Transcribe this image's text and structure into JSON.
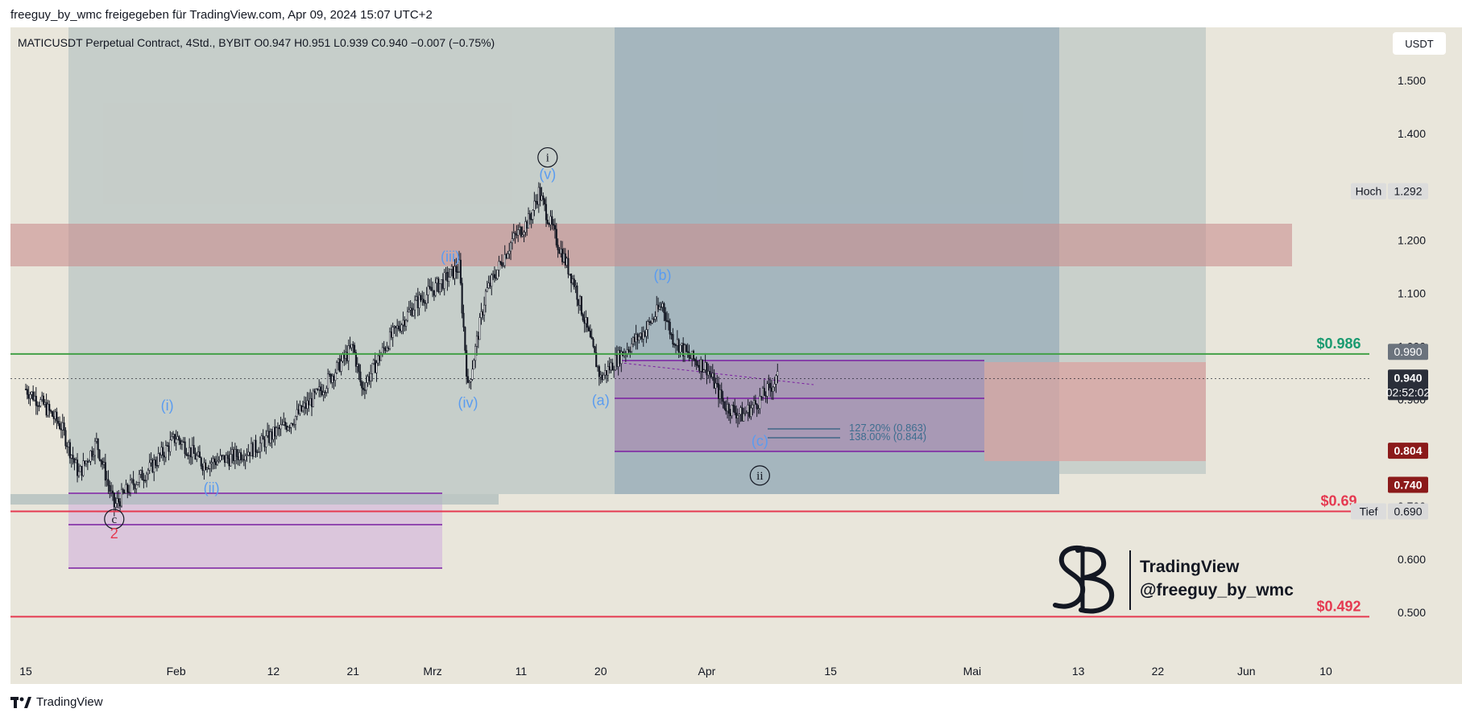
{
  "header": {
    "attribution": "freeguy_by_wmc freigegeben für TradingView.com, Apr 09, 2024 15:07 UTC+2",
    "symbol_line": "MATICUSDT Perpetual Contract, 4Std., BYBIT  O0.947  H0.951  L0.939  C0.940  −0.007 (−0.75%)"
  },
  "currency": "USDT",
  "footer": {
    "brand": "TradingView"
  },
  "watermark": {
    "line1": "TradingView",
    "line2": "@freeguy_by_wmc"
  },
  "colors": {
    "background": "#e9e6db",
    "candle": "#131722",
    "green_line": "#43a047",
    "red_line": "#e53950",
    "purple": "#7b1fa2",
    "wave_blue": "#5a9cf0",
    "zone_red": "#c98d8d",
    "zone_teal": "#8fa7b5"
  },
  "chart_data": {
    "type": "candlestick",
    "instrument": "MATICUSDT Perpetual Contract",
    "timeframe": "4Std.",
    "exchange": "BYBIT",
    "ohlc_last": {
      "open": 0.947,
      "high": 0.951,
      "low": 0.939,
      "close": 0.94,
      "change": -0.007,
      "change_pct": -0.75
    },
    "ylim": [
      0.42,
      1.6
    ],
    "y_ticks": [
      "0.500",
      "0.600",
      "0.700",
      "0.800",
      "0.900",
      "1.000",
      "1.100",
      "1.200",
      "1.300",
      "1.400",
      "1.500"
    ],
    "x_ticks": [
      {
        "label": "15",
        "date": "2024-01-15"
      },
      {
        "label": "Feb",
        "date": "2024-02-01"
      },
      {
        "label": "12",
        "date": "2024-02-12"
      },
      {
        "label": "21",
        "date": "2024-02-21"
      },
      {
        "label": "Mrz",
        "date": "2024-03-01"
      },
      {
        "label": "11",
        "date": "2024-03-11"
      },
      {
        "label": "20",
        "date": "2024-03-20"
      },
      {
        "label": "Apr",
        "date": "2024-04-01"
      },
      {
        "label": "15",
        "date": "2024-04-15"
      },
      {
        "label": "Mai",
        "date": "2024-05-01"
      },
      {
        "label": "13",
        "date": "2024-05-13"
      },
      {
        "label": "22",
        "date": "2024-05-22"
      },
      {
        "label": "Jun",
        "date": "2024-06-01"
      },
      {
        "label": "10",
        "date": "2024-06-10"
      }
    ],
    "price_path": [
      [
        "2024-01-15",
        0.92
      ],
      [
        "2024-01-17",
        0.89
      ],
      [
        "2024-01-19",
        0.85
      ],
      [
        "2024-01-21",
        0.76
      ],
      [
        "2024-01-23",
        0.82
      ],
      [
        "2024-01-25",
        0.7
      ],
      [
        "2024-01-27",
        0.74
      ],
      [
        "2024-01-29",
        0.77
      ],
      [
        "2024-02-01",
        0.83
      ],
      [
        "2024-02-04",
        0.78
      ],
      [
        "2024-02-07",
        0.79
      ],
      [
        "2024-02-10",
        0.81
      ],
      [
        "2024-02-14",
        0.86
      ],
      [
        "2024-02-17",
        0.91
      ],
      [
        "2024-02-21",
        1.0
      ],
      [
        "2024-02-22",
        0.92
      ],
      [
        "2024-02-25",
        1.01
      ],
      [
        "2024-02-28",
        1.08
      ],
      [
        "2024-03-02",
        1.12
      ],
      [
        "2024-03-04",
        1.15
      ],
      [
        "2024-03-05",
        0.92
      ],
      [
        "2024-03-07",
        1.1
      ],
      [
        "2024-03-10",
        1.2
      ],
      [
        "2024-03-12",
        1.24
      ],
      [
        "2024-03-13",
        1.29
      ],
      [
        "2024-03-15",
        1.2
      ],
      [
        "2024-03-17",
        1.12
      ],
      [
        "2024-03-19",
        1.0
      ],
      [
        "2024-03-20",
        0.94
      ],
      [
        "2024-03-22",
        0.98
      ],
      [
        "2024-03-25",
        1.03
      ],
      [
        "2024-03-27",
        1.08
      ],
      [
        "2024-03-28",
        1.02
      ],
      [
        "2024-03-30",
        0.98
      ],
      [
        "2024-04-01",
        0.96
      ],
      [
        "2024-04-03",
        0.89
      ],
      [
        "2024-04-05",
        0.87
      ],
      [
        "2024-04-07",
        0.9
      ],
      [
        "2024-04-09",
        0.94
      ]
    ],
    "horizontal_levels": [
      {
        "price": 0.986,
        "label": "$0.986",
        "color": "#43a047"
      },
      {
        "price": 0.69,
        "label": "$0.69",
        "color": "#e53950"
      },
      {
        "price": 0.492,
        "label": "$0.492",
        "color": "#e53950"
      }
    ],
    "price_axis_labels": [
      {
        "price": 0.99,
        "text": "0.990"
      },
      {
        "price": 0.94,
        "text": "0.940",
        "sub": "02:52:02"
      },
      {
        "price": 0.804,
        "text": "0.804"
      },
      {
        "price": 0.74,
        "text": "0.740"
      },
      {
        "price": 0.69,
        "text": "0.690",
        "tag": "Tief"
      },
      {
        "price": 1.292,
        "text": "1.292",
        "tag": "Hoch"
      }
    ],
    "fib_levels": [
      {
        "text": "127.20% (0.863)",
        "price": 0.863
      },
      {
        "text": "138.00% (0.844)",
        "price": 0.844
      }
    ],
    "wave_labels": [
      {
        "text": "(i)",
        "date": "2024-01-31",
        "price": 0.88,
        "color": "blue"
      },
      {
        "text": "(ii)",
        "date": "2024-02-05",
        "price": 0.725,
        "color": "blue"
      },
      {
        "text": "(iii)",
        "date": "2024-03-03",
        "price": 1.16,
        "color": "blue"
      },
      {
        "text": "(iv)",
        "date": "2024-03-05",
        "price": 0.885,
        "color": "blue"
      },
      {
        "text": "(v)",
        "date": "2024-03-14",
        "price": 1.315,
        "color": "blue"
      },
      {
        "text": "(a)",
        "date": "2024-03-20",
        "price": 0.89,
        "color": "blue"
      },
      {
        "text": "(b)",
        "date": "2024-03-27",
        "price": 1.125,
        "color": "blue"
      },
      {
        "text": "(c)",
        "date": "2024-04-07",
        "price": 0.813,
        "color": "blue"
      },
      {
        "text": "i",
        "date": "2024-03-14",
        "price": 1.348,
        "color": "circle"
      },
      {
        "text": "ii",
        "date": "2024-04-07",
        "price": 0.75,
        "color": "circle"
      },
      {
        "text": "c",
        "date": "2024-01-25",
        "price": 0.668,
        "color": "circle"
      },
      {
        "text": "2",
        "date": "2024-01-25",
        "price": 0.639,
        "color": "red"
      }
    ]
  }
}
